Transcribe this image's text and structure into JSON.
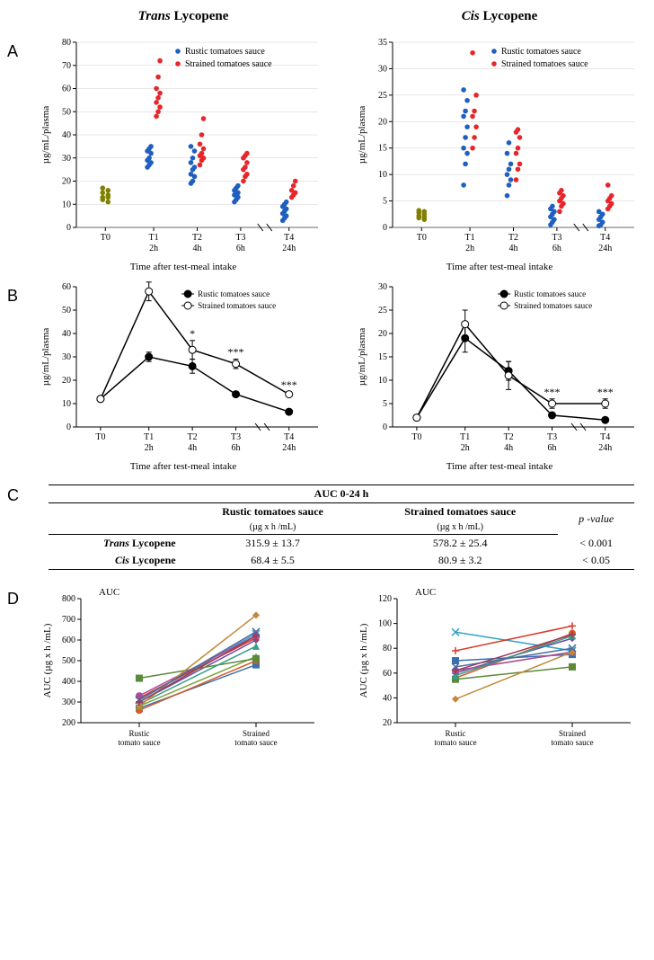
{
  "titles": {
    "trans": "Trans Lycopene",
    "cis": "Cis Lycopene"
  },
  "panel_labels": {
    "A": "A",
    "B": "B",
    "C": "C",
    "D": "D"
  },
  "legend": {
    "rustic": "Rustic tomatoes sauce",
    "strained": "Strained tomatoes sauce",
    "rustic_short": "Rustic tomato sauce",
    "strained_short": "Strained tomato sauce"
  },
  "axes": {
    "y_label_A": "µg/mL/plasma",
    "y_label_B": "µg/mL/plasma",
    "y_label_D": "AUC (µg x h /mL)",
    "x_label_AB": "Time after test-meal intake",
    "A_left": {
      "ymin": 0,
      "ymax": 80,
      "ystep": 10
    },
    "A_right": {
      "ymin": 0,
      "ymax": 35,
      "ystep": 5
    },
    "B_left": {
      "ymin": 0,
      "ymax": 60,
      "ystep": 10
    },
    "B_right": {
      "ymin": 0,
      "ymax": 30,
      "ystep": 5
    },
    "D_left": {
      "ymin": 200,
      "ymax": 800,
      "ystep": 100,
      "title": "AUC"
    },
    "D_right": {
      "ymin": 20,
      "ymax": 120,
      "ystep": 20,
      "title": "AUC"
    },
    "timepoints": [
      "T0",
      "T1",
      "T2",
      "T3",
      "T4"
    ],
    "timepoints_h": [
      "",
      "2h",
      "4h",
      "6h",
      "24h"
    ]
  },
  "colors": {
    "rustic": "#1f5fbf",
    "strained": "#e6262a",
    "baseline": "#808000",
    "black": "#000000",
    "grid": "#d0d0d0",
    "bg": "#ffffff",
    "subjects": [
      "#3a6fb0",
      "#d65a2a",
      "#7aa23f",
      "#6a4a9c",
      "#2ea0c9",
      "#d63a2a",
      "#5a8a3a",
      "#b04a9c",
      "#3a9c8a",
      "#c08a3a",
      "#4a6aa0",
      "#9c3a5a"
    ]
  },
  "A": {
    "left": {
      "baseline": [
        11,
        12,
        13,
        13,
        14,
        15,
        16,
        17
      ],
      "rustic": {
        "T1": [
          26,
          27,
          28,
          29,
          30,
          32,
          33,
          34,
          35
        ],
        "T2": [
          19,
          20,
          22,
          23,
          25,
          26,
          28,
          30,
          33,
          35
        ],
        "T3": [
          11,
          12,
          13,
          14,
          14,
          15,
          16,
          17,
          18
        ],
        "T4": [
          3,
          4,
          5,
          6,
          7,
          8,
          9,
          10,
          11
        ]
      },
      "strained": {
        "T1": [
          48,
          50,
          52,
          54,
          56,
          58,
          60,
          65,
          72
        ],
        "T2": [
          27,
          29,
          30,
          31,
          32,
          34,
          36,
          40,
          47
        ],
        "T3": [
          20,
          22,
          23,
          25,
          26,
          28,
          30,
          31,
          32
        ],
        "T4": [
          13,
          14,
          15,
          16,
          18,
          20
        ]
      }
    },
    "right": {
      "baseline": [
        1.5,
        1.8,
        2.0,
        2.2,
        2.5,
        2.8,
        3.0,
        3.2
      ],
      "rustic": {
        "T1": [
          8,
          12,
          14,
          15,
          17,
          19,
          21,
          22,
          24,
          26
        ],
        "T2": [
          6,
          8,
          9,
          10,
          11,
          12,
          14,
          16
        ],
        "T3": [
          0.5,
          1,
          1.5,
          2,
          2.5,
          3,
          3.5,
          4
        ],
        "T4": [
          0.3,
          0.5,
          1,
          1.5,
          2,
          2.5,
          3
        ]
      },
      "strained": {
        "T1": [
          15,
          17,
          19,
          21,
          22,
          25,
          33
        ],
        "T2": [
          9,
          11,
          12,
          14,
          15,
          17,
          18,
          18.5
        ],
        "T3": [
          3,
          4,
          4.5,
          5,
          5.5,
          6,
          6.5,
          7
        ],
        "T4": [
          3.5,
          4,
          4.5,
          5,
          5.5,
          6,
          8
        ]
      }
    }
  },
  "B": {
    "left": {
      "rustic": {
        "y": [
          12,
          30,
          26,
          14,
          6.5
        ],
        "err": [
          1,
          2,
          3,
          1,
          1
        ],
        "sig": [
          "",
          "",
          "",
          "",
          ""
        ]
      },
      "strained": {
        "y": [
          12,
          58,
          33,
          27,
          14
        ],
        "err": [
          1,
          4,
          4,
          2,
          1
        ],
        "sig": [
          "",
          "***",
          "*",
          "***",
          "***"
        ]
      }
    },
    "right": {
      "rustic": {
        "y": [
          2,
          19,
          12,
          2.5,
          1.5
        ],
        "err": [
          0.5,
          3,
          2,
          0.5,
          0.5
        ],
        "sig": [
          "",
          "",
          "",
          "",
          ""
        ]
      },
      "strained": {
        "y": [
          2,
          22,
          11,
          5,
          5
        ],
        "err": [
          0.5,
          3,
          3,
          1,
          1
        ],
        "sig": [
          "",
          "",
          "",
          "***",
          "***"
        ]
      }
    }
  },
  "C": {
    "header": "AUC 0-24 h",
    "col1": "Rustic tomatoes sauce",
    "col2": "Strained tomatoes sauce",
    "col3": "p -value",
    "unit": "(µg x h /mL)",
    "rows": [
      {
        "name_it": "Trans",
        "name": " Lycopene",
        "v1": "315.9 ± 13.7",
        "v2": "578.2 ± 25.4",
        "p": "< 0.001"
      },
      {
        "name_it": "Cis",
        "name": " Lycopene",
        "v1": "68.4 ± 5.5",
        "v2": "80.9 ± 3.2",
        "p": "< 0.05"
      }
    ]
  },
  "D": {
    "left": {
      "subjects": [
        [
          270,
          480
        ],
        [
          260,
          500
        ],
        [
          280,
          520
        ],
        [
          300,
          600
        ],
        [
          310,
          630
        ],
        [
          320,
          610
        ],
        [
          415,
          510
        ],
        [
          330,
          620
        ],
        [
          290,
          570
        ],
        [
          280,
          720
        ],
        [
          310,
          640
        ],
        [
          300,
          620
        ]
      ]
    },
    "right": {
      "subjects": [
        [
          70,
          75
        ],
        [
          56,
          92
        ],
        [
          62,
          77
        ],
        [
          60,
          88
        ],
        [
          93,
          78
        ],
        [
          78,
          98
        ],
        [
          55,
          65
        ],
        [
          62,
          77
        ],
        [
          58,
          90
        ],
        [
          39,
          77
        ],
        [
          65,
          80
        ],
        [
          62,
          91
        ]
      ]
    }
  },
  "styling": {
    "marker_radius_scatter": 2.8,
    "marker_radius_line": 4,
    "line_width": 1.5,
    "tick_fontsize": 10,
    "label_fontsize": 11,
    "title_fontsize": 15,
    "break_marks": true
  }
}
